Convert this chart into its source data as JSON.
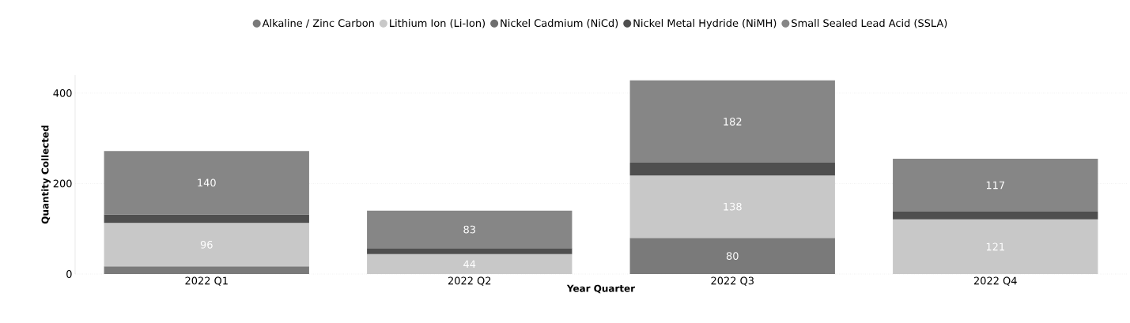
{
  "chart_data": {
    "type": "bar",
    "stacked": true,
    "xlabel": "Year Quarter",
    "ylabel": "Quantity Collected",
    "categories": [
      "2022 Q1",
      "2022 Q2",
      "2022 Q3",
      "2022 Q4"
    ],
    "series": [
      {
        "name": "Alkaline / Zinc Carbon",
        "color": "#7a7a7a",
        "values": [
          17,
          null,
          80,
          null
        ],
        "value_labels": [
          null,
          null,
          "80",
          null
        ]
      },
      {
        "name": "Lithium Ion (Li-Ion)",
        "color": "#c8c8c8",
        "values": [
          96,
          44,
          138,
          121
        ],
        "value_labels": [
          "96",
          "44",
          "138",
          "121"
        ]
      },
      {
        "name": "Nickel Cadmium (NiCd)",
        "color": "#6e6e6e",
        "values": [
          null,
          null,
          null,
          null
        ]
      },
      {
        "name": "Nickel Metal Hydride (NiMH)",
        "color": "#4f4f4f",
        "values": [
          19,
          13,
          28,
          17
        ]
      },
      {
        "name": "Small Sealed Lead Acid (SSLA)",
        "color": "#868686",
        "values": [
          140,
          83,
          182,
          117
        ],
        "value_labels": [
          "140",
          "83",
          "182",
          "117"
        ]
      }
    ],
    "ylim": [
      0,
      440
    ],
    "yticks": [
      0,
      200,
      400
    ],
    "grid": "y",
    "legend": "top"
  }
}
